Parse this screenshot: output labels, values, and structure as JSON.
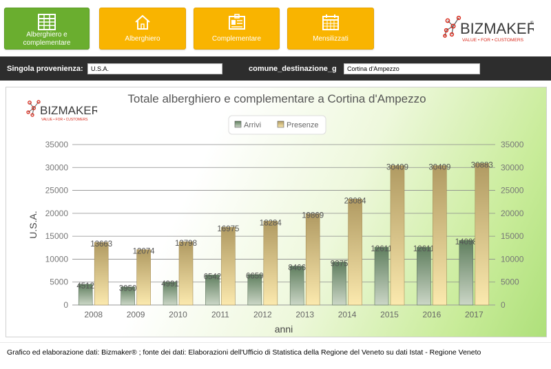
{
  "nav": {
    "buttons": [
      {
        "label": "Alberghiero e complementare",
        "icon": "table-icon",
        "active": true
      },
      {
        "label": "Alberghiero",
        "icon": "house-icon",
        "active": false
      },
      {
        "label": "Complementare",
        "icon": "id-card-icon",
        "active": false
      },
      {
        "label": "Mensilizzati",
        "icon": "calendar-icon",
        "active": false
      }
    ],
    "colors": {
      "button": "#f9b400",
      "active_button": "#6aae2f"
    }
  },
  "brand": {
    "name_bold": "BIZ",
    "name_rest": "MAKER",
    "tagline": "VALUE • FOR • CUSTOMERS",
    "trademark": "®"
  },
  "filters": {
    "origin_label": "Singola provenienza:",
    "origin_value": "U.S.A.",
    "destination_label": "comune_destinazione_g",
    "destination_value": "Cortina d'Ampezzo"
  },
  "chart_data": {
    "type": "bar",
    "title": "Totale alberghiero e complementare a Cortina d'Ampezzo",
    "xlabel": "anni",
    "ylabel": "U.S.A.",
    "ylim": [
      0,
      35000
    ],
    "yticks": [
      0,
      5000,
      10000,
      15000,
      20000,
      25000,
      30000,
      35000
    ],
    "categories": [
      "2008",
      "2009",
      "2010",
      "2011",
      "2012",
      "2013",
      "2014",
      "2015",
      "2016",
      "2017"
    ],
    "series": [
      {
        "name": "Arrivi",
        "color": "#7f9a7c",
        "values": [
          4512,
          3950,
          4991,
          6542,
          6659,
          8466,
          9375,
          12611,
          12611,
          14098
        ]
      },
      {
        "name": "Presenze",
        "color": "#e8cc8a",
        "values": [
          13663,
          12074,
          13798,
          16975,
          18284,
          19869,
          23084,
          30409,
          30409,
          30883
        ]
      }
    ],
    "legend_position": "top-center",
    "grid": true,
    "secondary_y_axis": true
  },
  "footer": {
    "text": "Grafico ed elaborazione dati: Bizmaker® ; fonte dei dati: Elaborazioni dell'Ufficio di Statistica della Regione del Veneto  su dati Istat - Regione Veneto"
  }
}
